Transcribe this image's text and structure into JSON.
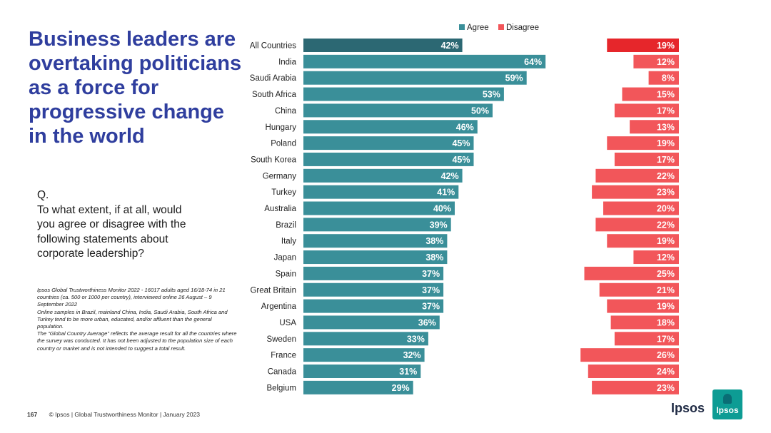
{
  "slide": {
    "title": "Business leaders are overtaking politicians as a force for progressive change in the world",
    "question_label": "Q.",
    "question_text": "To what extent, if at all, would\nyou agree or disagree with the\nfollowing statements about\ncorporate leadership?",
    "notes": [
      "Ipsos Global Trustworthiness Monitor 2022 - 16017 adults aged 16/18-74 in 21 countries (ca. 500 or 1000 per country), interviewed online 26 August – 9 September 2022",
      "Online samples in Brazil, mainland China, India, Saudi Arabia, South Africa and Turkey tend to be more urban, educated, and/or affluent than the general population.",
      "The “Global Country Average” reflects the average result for all the countries where the survey was conducted. It has not been adjusted to the population size of each country or market and is not intended to suggest a total result."
    ],
    "page_number": "167",
    "footer": "© Ipsos | Global Trustworthiness Monitor | January 2023",
    "logo_text": "Ipsos",
    "logo_badge": "Ipsos"
  },
  "colors": {
    "agree": "#3a8f99",
    "agree_highlight": "#2c6873",
    "disagree": "#f2565a",
    "disagree_highlight": "#e6262b",
    "title": "#2f3e9e"
  },
  "chart_data": {
    "type": "bar",
    "orientation": "horizontal",
    "legend": [
      "Agree",
      "Disagree"
    ],
    "legend_position": "top",
    "categories": [
      "All Countries",
      "India",
      "Saudi Arabia",
      "South Africa",
      "China",
      "Hungary",
      "Poland",
      "South Korea",
      "Germany",
      "Turkey",
      "Australia",
      "Brazil",
      "Italy",
      "Japan",
      "Spain",
      "Great Britain",
      "Argentina",
      "USA",
      "Sweden",
      "France",
      "Canada",
      "Belgium"
    ],
    "series": [
      {
        "name": "Agree",
        "values": [
          42,
          64,
          59,
          53,
          50,
          46,
          45,
          45,
          42,
          41,
          40,
          39,
          38,
          38,
          37,
          37,
          37,
          36,
          33,
          32,
          31,
          29
        ]
      },
      {
        "name": "Disagree",
        "values": [
          19,
          12,
          8,
          15,
          17,
          13,
          19,
          17,
          22,
          23,
          20,
          22,
          19,
          12,
          25,
          21,
          19,
          18,
          17,
          26,
          24,
          23
        ]
      }
    ],
    "value_suffix": "%",
    "highlight_category": "All Countries"
  }
}
